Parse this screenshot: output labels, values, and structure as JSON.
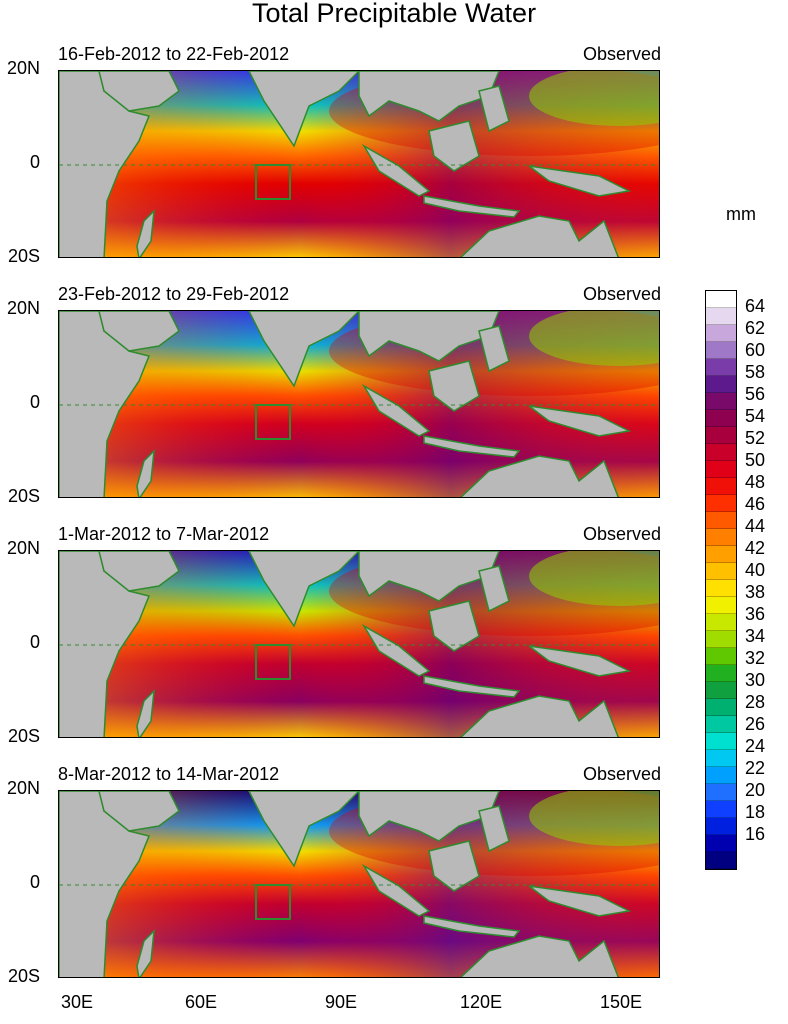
{
  "title": "Total Precipitable Water",
  "unit": "mm",
  "panels": [
    {
      "date_range": "16-Feb-2012 to 22-Feb-2012",
      "label": "Observed"
    },
    {
      "date_range": "23-Feb-2012 to 29-Feb-2012",
      "label": "Observed"
    },
    {
      "date_range": "1-Mar-2012 to 7-Mar-2012",
      "label": "Observed"
    },
    {
      "date_range": "8-Mar-2012 to 14-Mar-2012",
      "label": "Observed"
    }
  ],
  "lat_labels": [
    "20N",
    "0",
    "20S"
  ],
  "lon_labels": [
    "30E",
    "60E",
    "90E",
    "120E",
    "150E"
  ],
  "colorbar_labels": [
    "64",
    "62",
    "60",
    "58",
    "56",
    "54",
    "52",
    "50",
    "48",
    "46",
    "44",
    "42",
    "40",
    "38",
    "36",
    "34",
    "32",
    "30",
    "28",
    "26",
    "24",
    "22",
    "20",
    "18",
    "16"
  ],
  "colors": {
    "land": "#b9b9b9",
    "coast": "#2e8b2e",
    "equator": "#2e8b2e"
  }
}
